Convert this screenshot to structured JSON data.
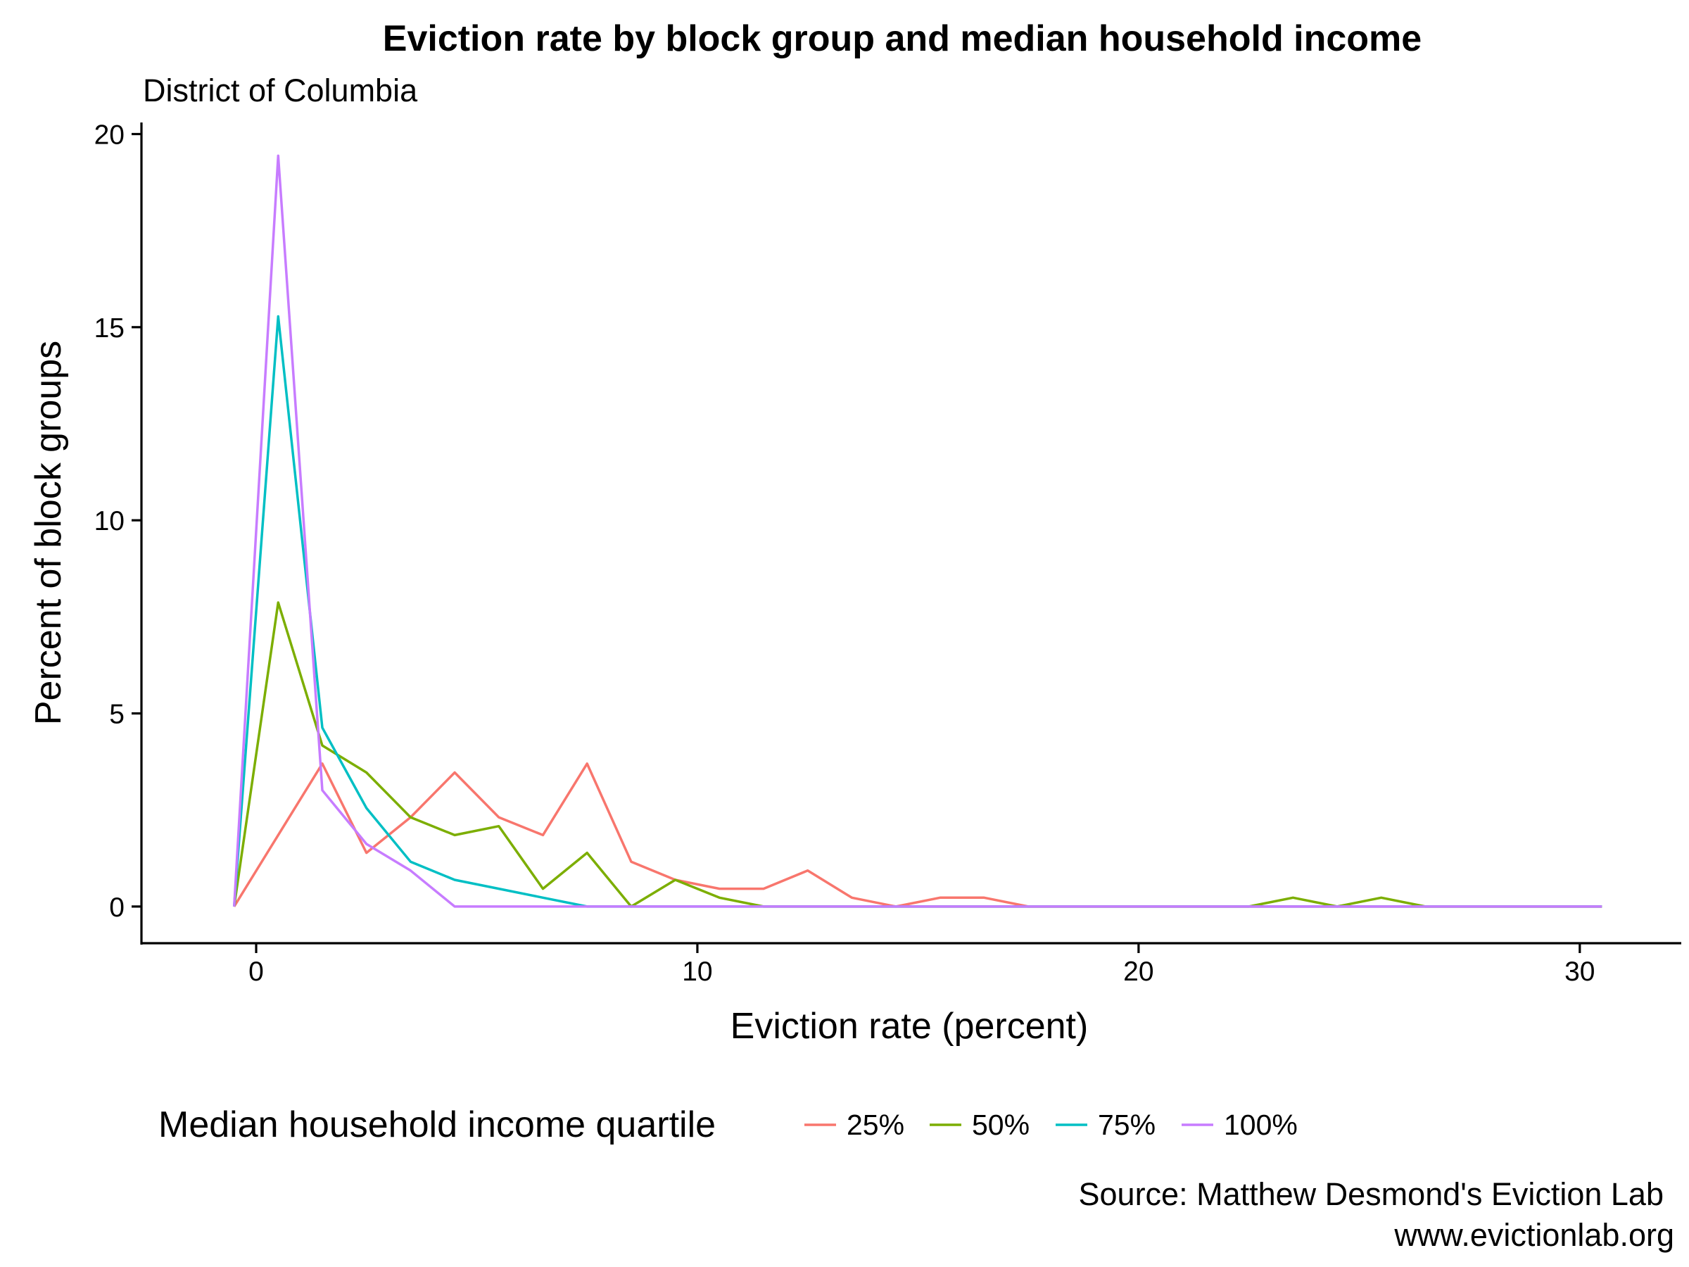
{
  "chart_data": {
    "type": "line",
    "title": "Eviction rate by block group and median household income",
    "subtitle": "District of Columbia",
    "xlabel": "Eviction rate (percent)",
    "ylabel": "Percent of block groups",
    "xlim": [
      -2.6,
      32.3
    ],
    "ylim": [
      -0.95,
      20.3
    ],
    "x_ticks": [
      0,
      10,
      20,
      30
    ],
    "y_ticks": [
      0,
      5,
      10,
      15,
      20
    ],
    "x_tick_labels": [
      "0",
      "10",
      "20",
      "30"
    ],
    "y_tick_labels": [
      "0",
      "5",
      "10",
      "15",
      "20"
    ],
    "grid": false,
    "legend": {
      "title": "Median household income quartile",
      "position": "bottom"
    },
    "x": [
      -0.5,
      0.5,
      1.5,
      2.5,
      3.5,
      4.5,
      5.5,
      6.5,
      7.5,
      8.5,
      9.5,
      10.5,
      11.5,
      12.5,
      13.5,
      14.5,
      15.5,
      16.5,
      17.5,
      18.5,
      19.5,
      20.5,
      21.5,
      22.5,
      23.5,
      24.5,
      25.5,
      26.5,
      27.5,
      28.5,
      29.5,
      30.5
    ],
    "series": [
      {
        "name": "25%",
        "color": "#F8766D",
        "values": [
          0,
          1.85,
          3.7,
          1.39,
          2.31,
          3.47,
          2.31,
          1.85,
          3.7,
          1.16,
          0.69,
          0.46,
          0.46,
          0.93,
          0.23,
          0,
          0.23,
          0.23,
          0,
          0,
          0,
          0,
          0,
          0,
          0,
          0,
          0,
          0,
          0,
          0,
          0,
          0
        ]
      },
      {
        "name": "50%",
        "color": "#7CAE00",
        "values": [
          0,
          7.87,
          4.17,
          3.47,
          2.31,
          1.85,
          2.08,
          0.46,
          1.39,
          0,
          0.69,
          0.23,
          0,
          0,
          0,
          0,
          0,
          0,
          0,
          0,
          0,
          0,
          0,
          0,
          0.23,
          0,
          0.23,
          0,
          0,
          0,
          0,
          0
        ]
      },
      {
        "name": "75%",
        "color": "#00BFC4",
        "values": [
          0,
          15.28,
          4.63,
          2.55,
          1.16,
          0.69,
          0.46,
          0.23,
          0,
          0,
          0,
          0,
          0,
          0,
          0,
          0,
          0,
          0,
          0,
          0,
          0,
          0,
          0,
          0,
          0,
          0,
          0,
          0,
          0,
          0,
          0,
          0
        ]
      },
      {
        "name": "100%",
        "color": "#C77CFF",
        "values": [
          0,
          19.44,
          3.01,
          1.62,
          0.93,
          0,
          0,
          0,
          0,
          0,
          0,
          0,
          0,
          0,
          0,
          0,
          0,
          0,
          0,
          0,
          0,
          0,
          0,
          0,
          0,
          0,
          0,
          0,
          0,
          0,
          0,
          0
        ]
      }
    ],
    "caption": [
      "Source: Matthew Desmond's Eviction Lab",
      "www.evictionlab.org"
    ]
  }
}
